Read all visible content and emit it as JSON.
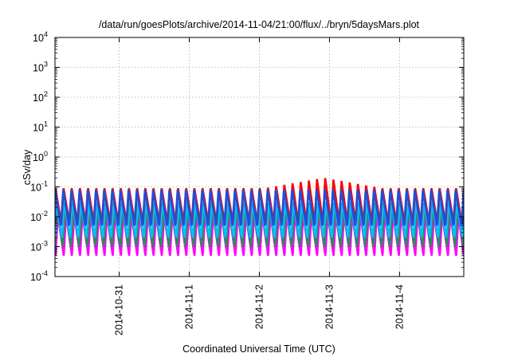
{
  "chart_data": {
    "type": "line",
    "title": "/data/run/goesPlots/archive/2014-11-04/21:00/flux/../bryn/5daysMars.plot",
    "xlabel": "Coordinated Universal Time (UTC)",
    "ylabel": "cSv/day",
    "yscale": "log",
    "ylim": [
      0.0001,
      10000
    ],
    "xlim": [
      "2014-10-30 02:00",
      "2014-11-04 22:00"
    ],
    "grid": true,
    "x_ticks": [
      {
        "label": "2014-10-31",
        "t": "2014-10-31 00:00"
      },
      {
        "label": "2014-11-1",
        "t": "2014-11-01 00:00"
      },
      {
        "label": "2014-11-2",
        "t": "2014-11-02 00:00"
      },
      {
        "label": "2014-11-3",
        "t": "2014-11-03 00:00"
      },
      {
        "label": "2014-11-4",
        "t": "2014-11-04 00:00"
      }
    ],
    "y_ticks": [
      {
        "base": "10",
        "exp": "-4",
        "value": 0.0001
      },
      {
        "base": "10",
        "exp": "-3",
        "value": 0.001
      },
      {
        "base": "10",
        "exp": "-2",
        "value": 0.01
      },
      {
        "base": "10",
        "exp": "-1",
        "value": 0.1
      },
      {
        "base": "10",
        "exp": "0",
        "value": 1
      },
      {
        "base": "10",
        "exp": "1",
        "value": 10
      },
      {
        "base": "10",
        "exp": "2",
        "value": 100
      },
      {
        "base": "10",
        "exp": "3",
        "value": 1000
      },
      {
        "base": "10",
        "exp": "4",
        "value": 10000
      }
    ],
    "oscillation_period_hours": 2.8,
    "series": [
      {
        "color": "#ff00ff",
        "peak": 0.012,
        "trough": 0.0005,
        "phase": 0.35
      },
      {
        "color": "#2e8b57",
        "peak": 0.02,
        "trough": 0.001,
        "phase": 0.25
      },
      {
        "color": "#00bfff",
        "peak": 0.03,
        "trough": 0.002,
        "phase": 0.15
      },
      {
        "color": "#ff0000",
        "peak": 0.09,
        "trough": 0.006,
        "phase": 0.05,
        "bump": {
          "center": "2014-11-02 22:00",
          "width_hours": 20,
          "max": 0.2
        }
      },
      {
        "color": "#1e4fd8",
        "peak": 0.08,
        "trough": 0.005,
        "phase": 0.0
      }
    ]
  }
}
